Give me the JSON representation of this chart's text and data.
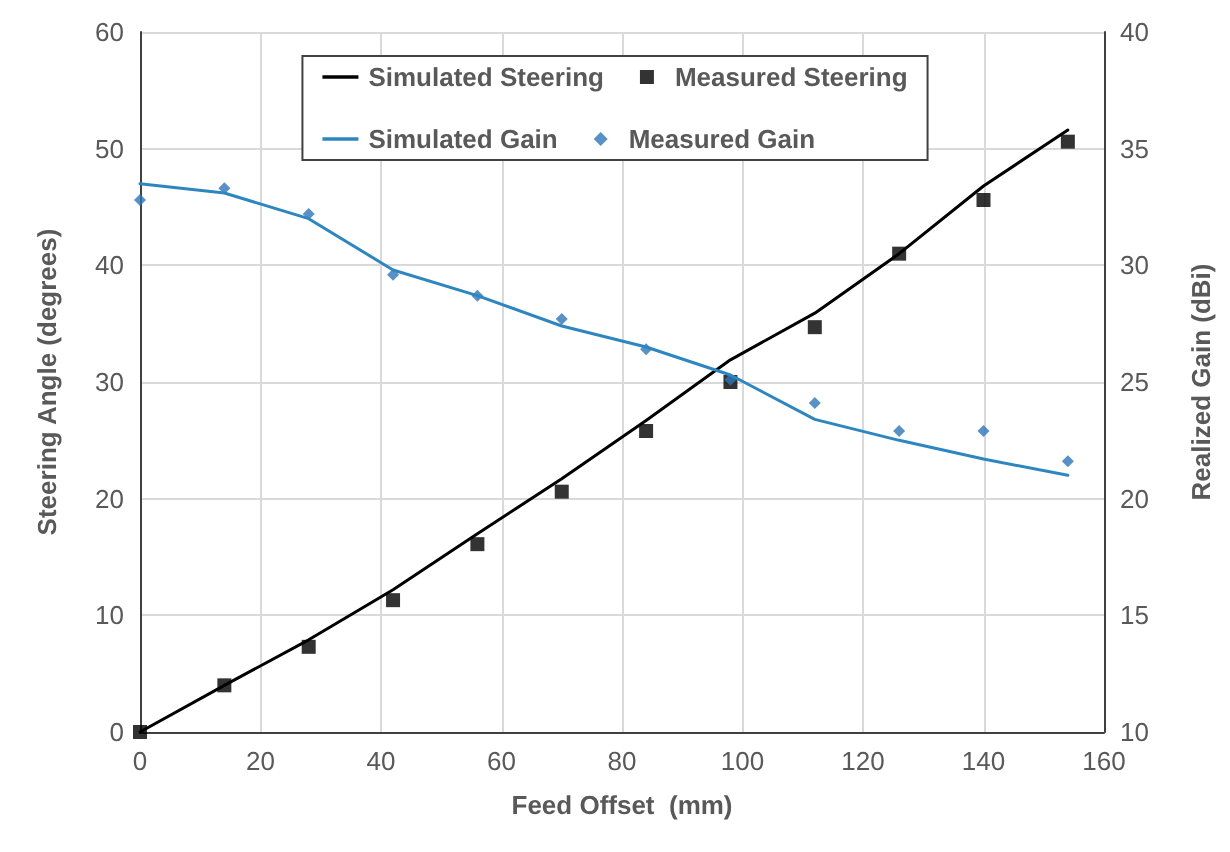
{
  "chart_data": {
    "type": "line",
    "xlabel": "Feed Offset  (mm)",
    "ylabel": "Steering Angle (degrees)",
    "y2label": "Realized Gain (dBi)",
    "x": [
      0,
      14,
      28,
      42,
      56,
      70,
      84,
      98,
      112,
      126,
      140,
      154
    ],
    "series": [
      {
        "name": "Simulated Steering",
        "color": "#000000",
        "marker": "none",
        "values": [
          0,
          4,
          7.9,
          12.2,
          17,
          21.7,
          26.7,
          31.9,
          35.9,
          41,
          46.8,
          51.6
        ]
      },
      {
        "name": "Measured Steering",
        "type": "scatter",
        "color": "#000000",
        "marker": "square",
        "values": [
          0,
          4,
          7.3,
          11.3,
          16.1,
          20.6,
          25.8,
          30,
          34.7,
          41,
          45.6,
          50.6
        ]
      },
      {
        "name": "Simulated Gain",
        "color": "#2e86c1",
        "marker": "none",
        "axis": "y2",
        "values": [
          33.5,
          33.1,
          32,
          29.8,
          28.7,
          27.4,
          26.5,
          25.3,
          23.4,
          22.5,
          21.7,
          21
        ]
      },
      {
        "name": "Measured Gain",
        "type": "scatter",
        "color": "#2e75b6",
        "marker": "diamond",
        "axis": "y2",
        "values": [
          32.8,
          33.3,
          32.2,
          29.6,
          28.7,
          27.7,
          26.4,
          25.1,
          24.1,
          22.9,
          22.9,
          21.6
        ]
      }
    ],
    "xlim": [
      0,
      160
    ],
    "xticks": [
      0,
      20,
      40,
      60,
      80,
      100,
      120,
      140,
      160
    ],
    "ylim": [
      0,
      60
    ],
    "yticks": [
      0,
      10,
      20,
      30,
      40,
      50,
      60
    ],
    "y2lim": [
      10,
      40
    ],
    "y2ticks": [
      10,
      15,
      20,
      25,
      30,
      35,
      40
    ],
    "grid": true,
    "legend": "top"
  }
}
